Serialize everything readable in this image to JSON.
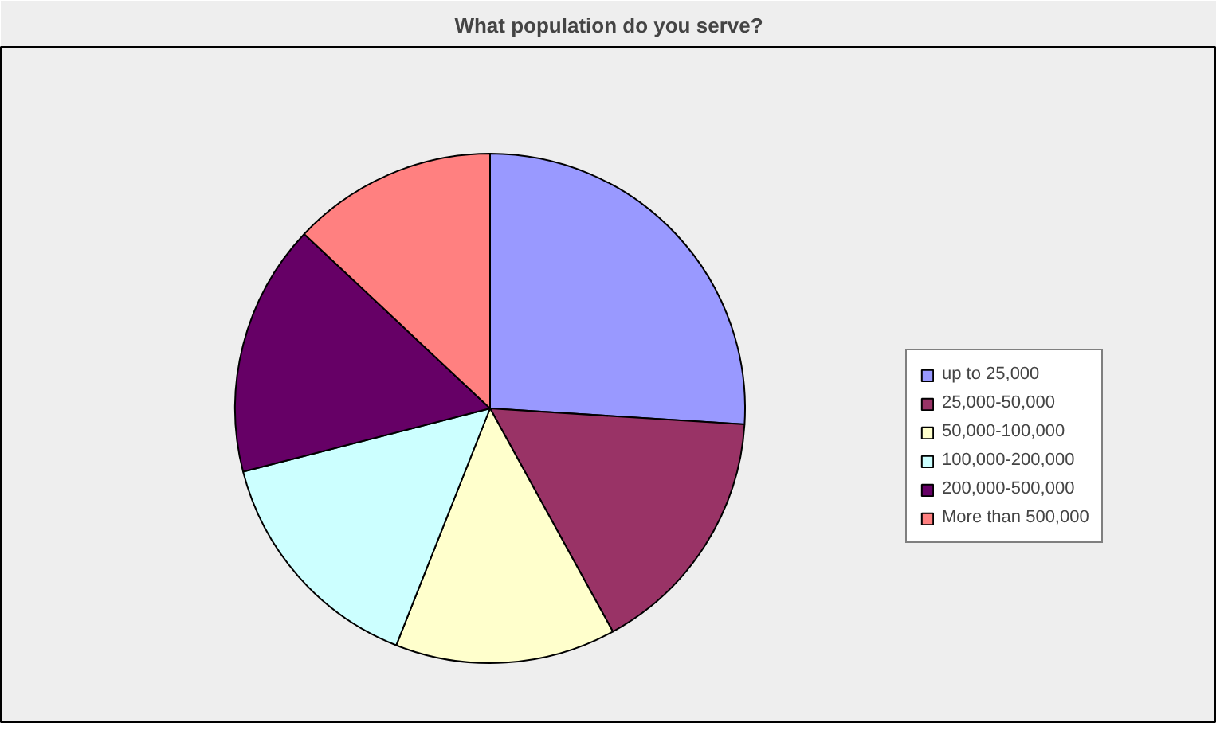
{
  "chart_data": {
    "type": "pie",
    "title": "What population do you serve?",
    "categories": [
      "up to 25,000",
      "25,000-50,000",
      "50,000-100,000",
      "100,000-200,000",
      "200,000-500,000",
      "More than 500,000"
    ],
    "values": [
      26,
      16,
      14,
      15,
      16,
      13
    ],
    "colors": [
      "#9999ff",
      "#993366",
      "#ffffcc",
      "#ccffff",
      "#660066",
      "#ff8080"
    ],
    "legend": "right"
  }
}
